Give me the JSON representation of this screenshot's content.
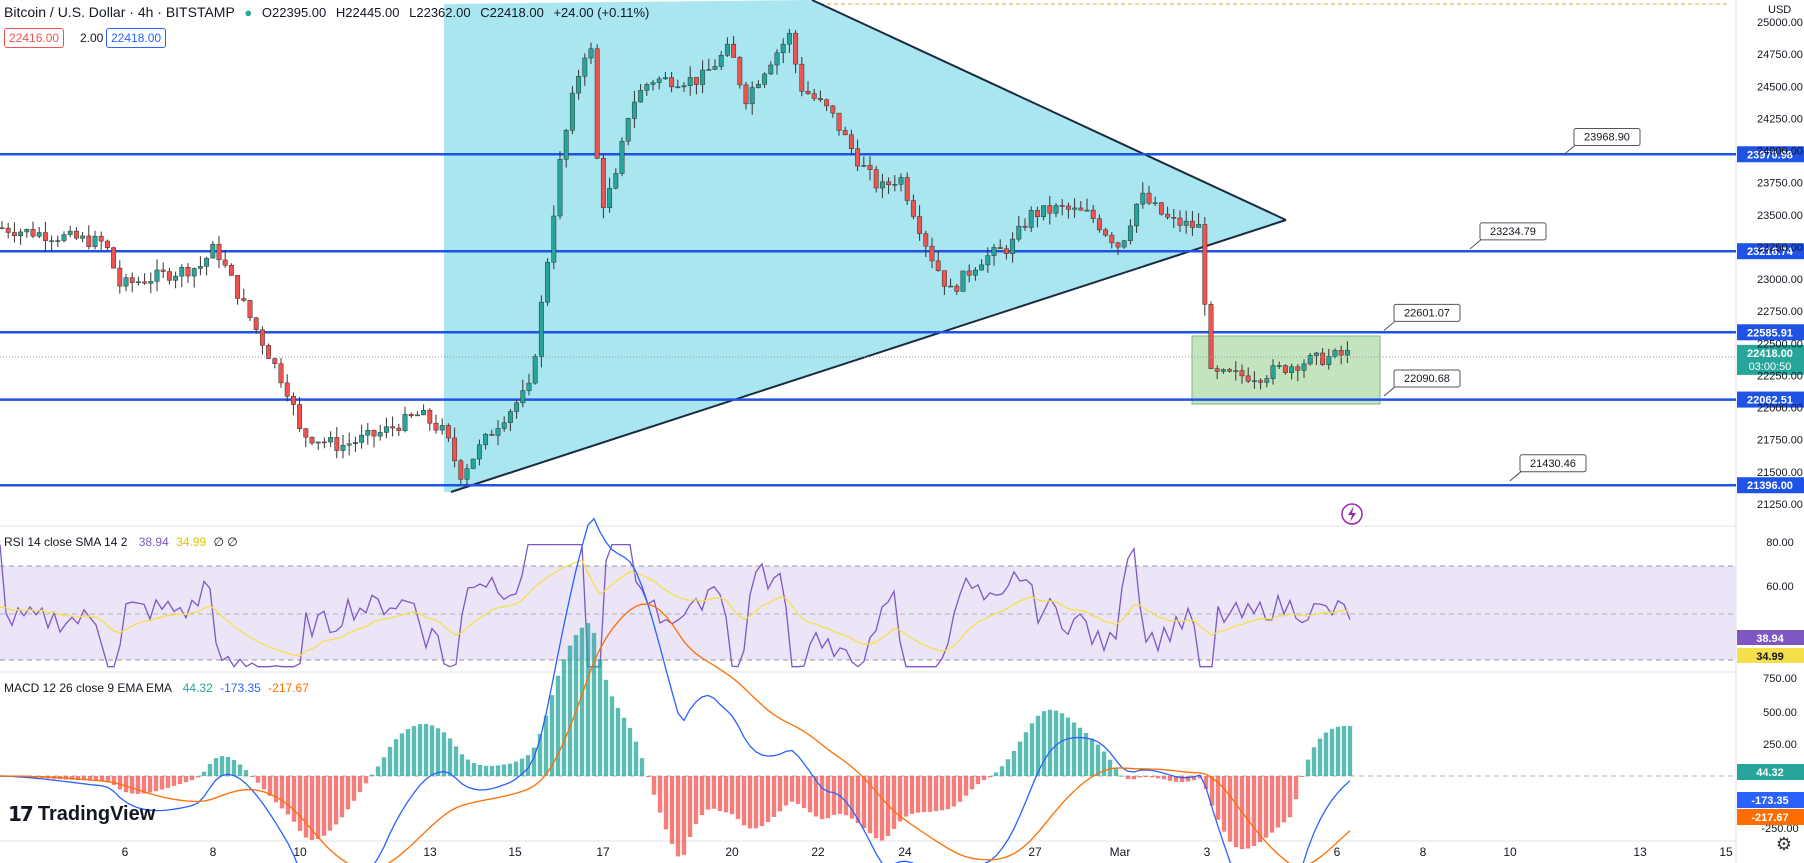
{
  "header": {
    "symbol": "Bitcoin / U.S. Dollar · 4h · BITSTAMP",
    "open": "O22395.00",
    "high": "H22445.00",
    "low": "L22362.00",
    "close": "C22418.00",
    "change": "+24.00 (+0.11%)",
    "bid": "22416.00",
    "spread": "2.00",
    "ask": "22418.00",
    "currency": "USD"
  },
  "colors": {
    "up": "#26a69a",
    "down": "#ef5350",
    "level": "#1e53e5",
    "triangle": "#9de3ef",
    "box": "#a6d89c",
    "rsi": "#7e57c2",
    "rsi_sma": "#f5e04c",
    "macd": "#2962ff",
    "signal": "#ff6d00"
  },
  "rsi": {
    "title": "RSI 14 close SMA 14 2",
    "value": "38.94",
    "sma": "34.99",
    "extra": "∅ ∅",
    "ticks": [
      "80.00",
      "60.00"
    ]
  },
  "macd": {
    "title": "MACD 12 26 close 9 EMA EMA",
    "hist": "44.32",
    "macd": "-173.35",
    "signal": "-217.67",
    "ticks": [
      "750.00",
      "500.00",
      "250.00",
      "-250.00"
    ]
  },
  "brand": "TradingView",
  "chart_data": {
    "type": "candlestick",
    "title": "Bitcoin / U.S. Dollar · 4h · BITSTAMP",
    "ylabel": "USD",
    "ylim": [
      21250,
      25000
    ],
    "y_ticks": [
      21250,
      21500,
      21750,
      22000,
      22250,
      22500,
      22750,
      23000,
      23250,
      23500,
      23750,
      24000,
      24250,
      24500,
      24750,
      25000
    ],
    "x_ticks": [
      "6",
      "8",
      "10",
      "13",
      "15",
      "17",
      "20",
      "22",
      "24",
      "27",
      "Mar",
      "3",
      "6",
      "8",
      "10",
      "13",
      "15"
    ],
    "horizontal_levels": [
      {
        "label": "23970.98",
        "value": 23970.98
      },
      {
        "label": "23216.74",
        "value": 23216.74
      },
      {
        "label": "22585.91",
        "value": 22585.91
      },
      {
        "label": "22062.51",
        "value": 22062.51
      },
      {
        "label": "21396.00",
        "value": 21396.0
      }
    ],
    "callouts": [
      {
        "label": "23968.90",
        "value": 23968.9
      },
      {
        "label": "23234.79",
        "value": 23234.79
      },
      {
        "label": "22601.07",
        "value": 22601.07
      },
      {
        "label": "22090.68",
        "value": 22090.68
      },
      {
        "label": "21430.46",
        "value": 21430.46
      }
    ],
    "current_price": "22418.00",
    "countdown": "03:00:50",
    "close_path": [
      [
        "6",
        23400
      ],
      [
        "8",
        23050
      ],
      [
        "9",
        23300
      ],
      [
        "10",
        22100
      ],
      [
        "11",
        21750
      ],
      [
        "13",
        21800
      ],
      [
        "14",
        21450
      ],
      [
        "15",
        22150
      ],
      [
        "16",
        23700
      ],
      [
        "17",
        24850
      ],
      [
        "17b",
        23500
      ],
      [
        "18",
        24400
      ],
      [
        "20",
        24650
      ],
      [
        "21",
        24880
      ],
      [
        "22",
        24300
      ],
      [
        "23",
        23700
      ],
      [
        "24",
        23800
      ],
      [
        "25",
        22900
      ],
      [
        "26",
        23200
      ],
      [
        "27",
        23500
      ],
      [
        "28",
        23200
      ],
      [
        "Mar",
        23650
      ],
      [
        "2",
        23400
      ],
      [
        "3",
        22200
      ],
      [
        "4",
        22250
      ],
      [
        "5",
        22380
      ],
      [
        "6",
        22418
      ]
    ]
  }
}
